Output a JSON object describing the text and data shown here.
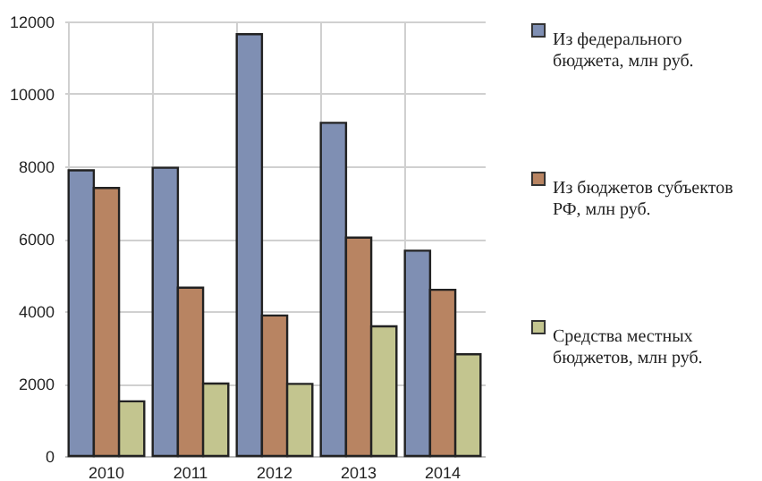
{
  "chart_data": {
    "type": "bar",
    "categories": [
      "2010",
      "2011",
      "2012",
      "2013",
      "2014"
    ],
    "series": [
      {
        "name": "Из федерального бюджета, млн руб.",
        "color": "#7f8fb3",
        "values": [
          7890,
          7960,
          11650,
          9200,
          5670
        ]
      },
      {
        "name": "Из бюджетов субъектов РФ, млн руб.",
        "color": "#b88462",
        "values": [
          7400,
          4650,
          3880,
          6030,
          4590
        ]
      },
      {
        "name": "Средства местных бюджетов, млн руб.",
        "color": "#c3c58f",
        "values": [
          1510,
          2000,
          1990,
          3580,
          2810
        ]
      }
    ],
    "ylim": [
      0,
      12000
    ],
    "yticks": [
      0,
      2000,
      4000,
      6000,
      8000,
      10000,
      12000
    ],
    "grid": true,
    "legend": "right"
  }
}
